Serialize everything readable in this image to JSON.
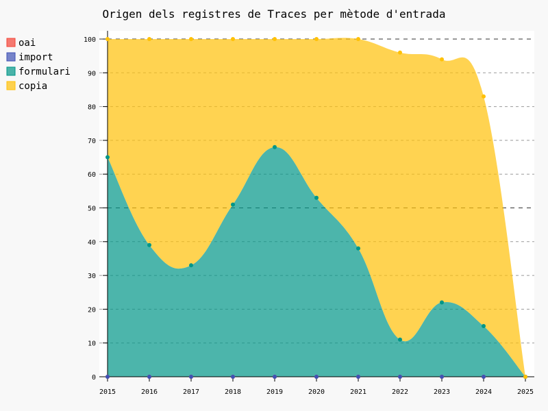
{
  "chart_data": {
    "type": "area",
    "stacked": true,
    "title": "Origen dels registres de Traces per mètode d'entrada",
    "xlabel": "",
    "ylabel": "",
    "categories": [
      "2015",
      "2016",
      "2017",
      "2018",
      "2019",
      "2020",
      "2021",
      "2022",
      "2023",
      "2024",
      "2025"
    ],
    "series": [
      {
        "name": "oai",
        "color": "#F44336",
        "values": [
          0,
          0,
          0,
          0,
          0,
          0,
          0,
          0,
          0,
          0,
          0
        ]
      },
      {
        "name": "import",
        "color": "#3F51B5",
        "values": [
          0,
          0,
          0,
          0,
          0,
          0,
          0,
          0,
          0,
          0,
          0
        ]
      },
      {
        "name": "formulari",
        "color": "#009688",
        "values": [
          65,
          39,
          33,
          51,
          68,
          53,
          38,
          11,
          22,
          15,
          0
        ]
      },
      {
        "name": "copia",
        "color": "#FFC107",
        "values": [
          35,
          61,
          67,
          49,
          32,
          47,
          62,
          85,
          72,
          68,
          0
        ]
      }
    ],
    "ylim": [
      0,
      100
    ],
    "yticks": [
      "0",
      "10",
      "20",
      "30",
      "40",
      "50",
      "60",
      "70",
      "80",
      "90",
      "100"
    ],
    "grid": true,
    "legend_position": "top-left"
  }
}
